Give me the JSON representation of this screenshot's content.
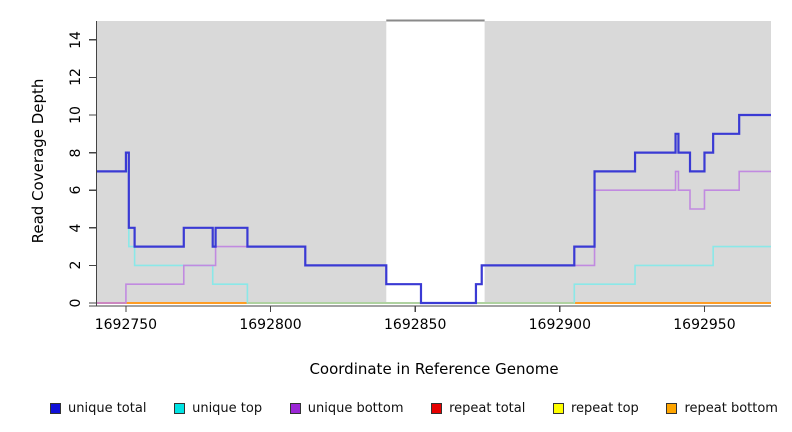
{
  "figure": {
    "y_axis_title": "Read Coverage Depth",
    "x_axis_title": "Coordinate in Reference Genome"
  },
  "chart_data": {
    "type": "line",
    "subtype": "step",
    "title": "",
    "xlabel": "Coordinate in Reference Genome",
    "ylabel": "Read Coverage Depth",
    "xlim": [
      1692740,
      1692973
    ],
    "ylim": [
      0,
      15
    ],
    "x_ticks": [
      1692750,
      1692800,
      1692850,
      1692900,
      1692950
    ],
    "y_ticks": [
      0,
      2,
      4,
      6,
      8,
      10,
      12,
      14
    ],
    "grid": false,
    "legend_position": "bottom",
    "plot_background": "#d9d9d9",
    "axis_color": "#444444",
    "masked_region": {
      "from": 1692840,
      "to": 1692874,
      "fill": "#ffffff",
      "top_line_color": "#8a8a8a"
    },
    "series": [
      {
        "name": "unique total",
        "color": "#3a3ad4",
        "width": 2.2,
        "steps": [
          [
            1692740,
            7
          ],
          [
            1692750,
            8
          ],
          [
            1692751,
            4
          ],
          [
            1692753,
            3
          ],
          [
            1692770,
            4
          ],
          [
            1692780,
            3
          ],
          [
            1692781,
            4
          ],
          [
            1692792,
            3
          ],
          [
            1692812,
            2
          ],
          [
            1692840,
            1
          ],
          [
            1692852,
            0
          ],
          [
            1692871,
            1
          ],
          [
            1692873,
            2
          ],
          [
            1692905,
            3
          ],
          [
            1692912,
            7
          ],
          [
            1692926,
            8
          ],
          [
            1692940,
            9
          ],
          [
            1692941,
            8
          ],
          [
            1692945,
            7
          ],
          [
            1692950,
            8
          ],
          [
            1692953,
            9
          ],
          [
            1692962,
            10
          ]
        ]
      },
      {
        "name": "unique top",
        "color": "#8ae8e8",
        "width": 1.6,
        "steps": [
          [
            1692740,
            7
          ],
          [
            1692751,
            3
          ],
          [
            1692753,
            2
          ],
          [
            1692780,
            1
          ],
          [
            1692792,
            0
          ],
          [
            1692905,
            1
          ],
          [
            1692926,
            2
          ],
          [
            1692953,
            3
          ]
        ]
      },
      {
        "name": "unique bottom",
        "color": "#c18ae0",
        "width": 1.6,
        "steps": [
          [
            1692740,
            0
          ],
          [
            1692750,
            1
          ],
          [
            1692770,
            2
          ],
          [
            1692781,
            3
          ],
          [
            1692812,
            2
          ],
          [
            1692840,
            1
          ],
          [
            1692852,
            0
          ],
          [
            1692871,
            1
          ],
          [
            1692873,
            2
          ],
          [
            1692912,
            6
          ],
          [
            1692940,
            7
          ],
          [
            1692941,
            6
          ],
          [
            1692945,
            5
          ],
          [
            1692950,
            6
          ],
          [
            1692962,
            7
          ]
        ]
      },
      {
        "name": "repeat total",
        "color": "#e60000",
        "width": 1.5,
        "steps": [
          [
            1692740,
            0
          ]
        ]
      },
      {
        "name": "repeat top",
        "color": "#ffff00",
        "width": 1.5,
        "steps": [
          [
            1692740,
            0
          ]
        ]
      },
      {
        "name": "repeat bottom",
        "color": "#ff9d24",
        "width": 2,
        "steps": [
          [
            1692740,
            0
          ]
        ]
      }
    ],
    "zero_line_overlays": [
      {
        "from": 1692792,
        "to": 1692905,
        "color": "#a8d8a8",
        "width": 1.6
      },
      {
        "from": 1692740,
        "to": 1692750,
        "color": "#d9639c",
        "width": 1.6
      }
    ]
  },
  "legend": {
    "items": [
      {
        "label": "unique total",
        "color": "#1010d8"
      },
      {
        "label": "unique top",
        "color": "#00e3e3"
      },
      {
        "label": "unique bottom",
        "color": "#9b26d6"
      },
      {
        "label": "repeat total",
        "color": "#e60000"
      },
      {
        "label": "repeat top",
        "color": "#ffff00"
      },
      {
        "label": "repeat bottom",
        "color": "#ffa500"
      }
    ]
  }
}
